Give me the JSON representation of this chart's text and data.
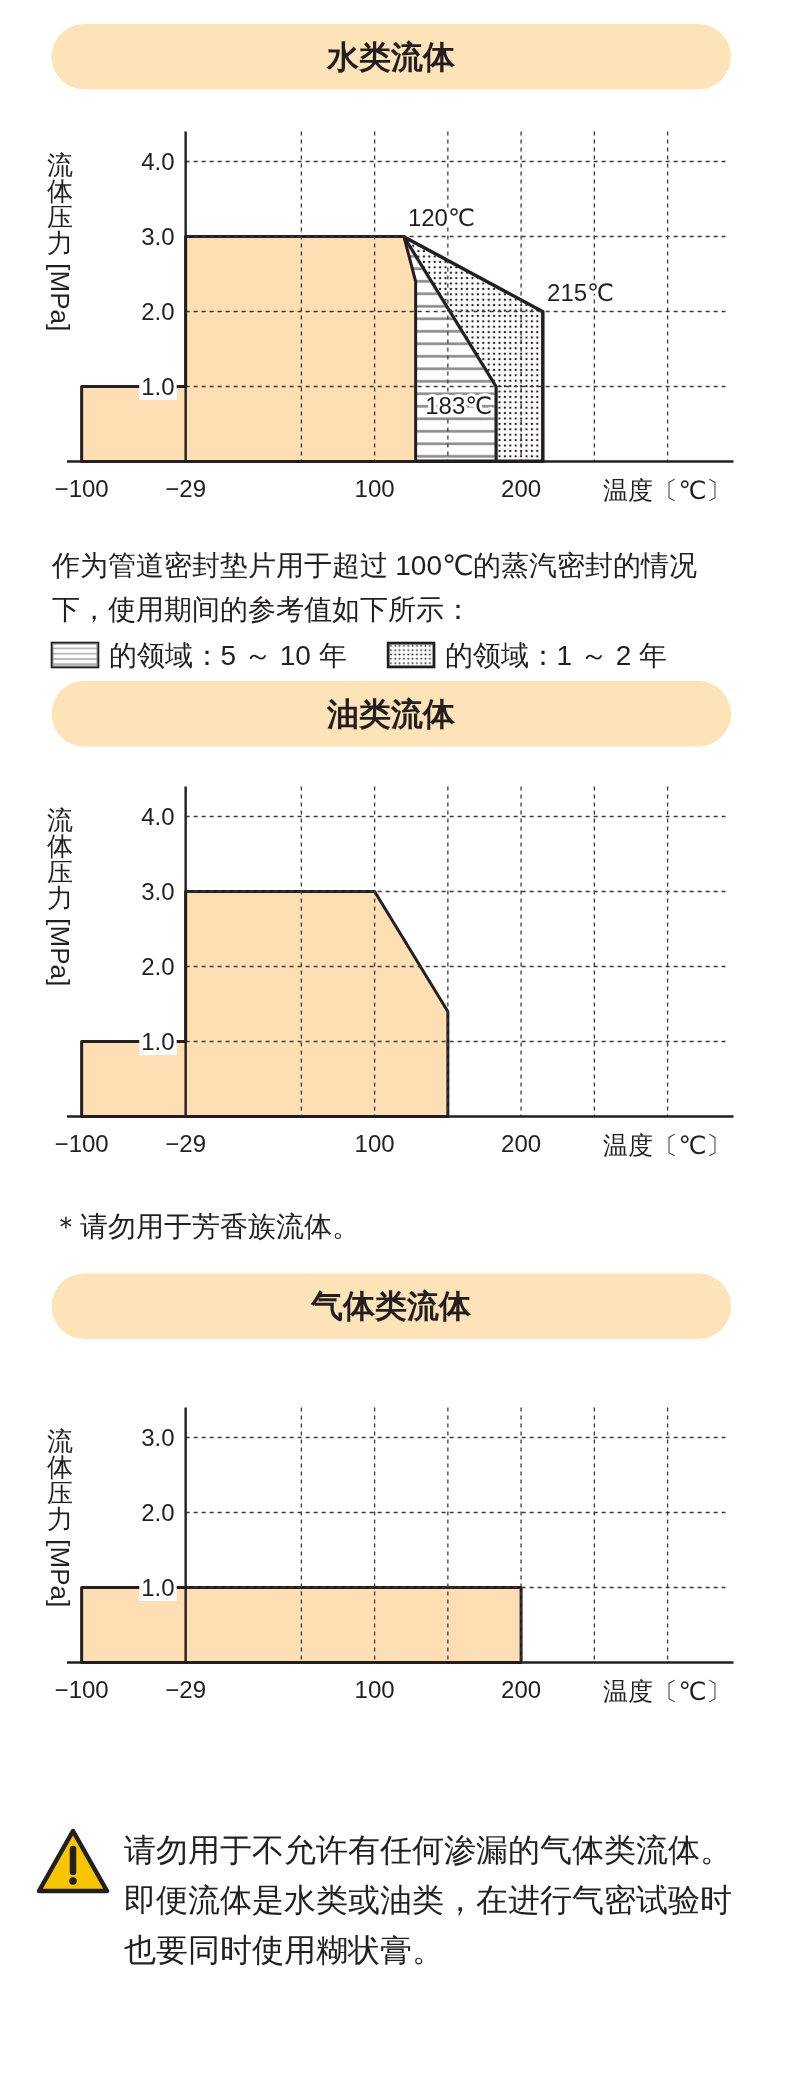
{
  "chart_data": [
    {
      "type": "area",
      "title": "水类流体",
      "xlabel": "温度〔℃〕",
      "ylabel": "流体压力 [MPa]",
      "xlim": [
        -110,
        345
      ],
      "xticks": [
        {
          "value": -100,
          "label": "−100"
        },
        {
          "value": -29,
          "label": "−29"
        },
        {
          "value": 50,
          "label": null
        },
        {
          "value": 100,
          "label": "100"
        },
        {
          "value": 150,
          "label": null
        },
        {
          "value": 200,
          "label": "200"
        },
        {
          "value": 250,
          "label": null
        },
        {
          "value": 300,
          "label": null
        }
      ],
      "ylim": [
        0,
        4.4
      ],
      "yticks": [
        {
          "value": 1,
          "label": "1.0"
        },
        {
          "value": 2,
          "label": "2.0"
        },
        {
          "value": 3,
          "label": "3.0"
        },
        {
          "value": 4,
          "label": "4.0"
        }
      ],
      "grid": true,
      "legend": "bottom",
      "series": [
        {
          "color": "#fddfb3",
          "x": [
            -100,
            -29,
            -29,
            120,
            128
          ],
          "values": [
            1,
            1,
            3,
            3,
            2.4
          ]
        },
        {
          "name": "的领域：5 ～ 10 年",
          "color": "#8a8a8a",
          "x": [
            120,
            183
          ],
          "values": [
            3,
            1
          ]
        },
        {
          "name": "的领域：1 ～ 2 年",
          "color": "#231f20",
          "x": [
            120,
            215
          ],
          "values": [
            3,
            2
          ]
        }
      ],
      "annotations": [
        {
          "text": "120℃",
          "x": 120,
          "y": 3
        },
        {
          "text": "215℃",
          "x": 215,
          "y": 2
        },
        {
          "text": "183℃",
          "x": 183,
          "y": 1
        },
        "作为管道密封垫片用于超过 100℃的蒸汽密封的情况下，使用期间的参考值如下所示："
      ]
    },
    {
      "type": "area",
      "title": "油类流体",
      "xlabel": "温度〔℃〕",
      "ylabel": "流体压力 [MPa]",
      "xlim": [
        -110,
        345
      ],
      "xticks": [
        {
          "value": -100,
          "label": "−100"
        },
        {
          "value": -29,
          "label": "−29"
        },
        {
          "value": 50,
          "label": null
        },
        {
          "value": 100,
          "label": "100"
        },
        {
          "value": 150,
          "label": null
        },
        {
          "value": 200,
          "label": "200"
        },
        {
          "value": 250,
          "label": null
        },
        {
          "value": 300,
          "label": null
        }
      ],
      "ylim": [
        0,
        4.4
      ],
      "yticks": [
        {
          "value": 1,
          "label": "1.0"
        },
        {
          "value": 2,
          "label": "2.0"
        },
        {
          "value": 3,
          "label": "3.0"
        },
        {
          "value": 4,
          "label": "4.0"
        }
      ],
      "grid": true,
      "series": [
        {
          "color": "#fddfb3",
          "x": [
            -100,
            -29,
            -29,
            100,
            150
          ],
          "values": [
            1,
            1,
            3,
            3,
            1.4
          ]
        }
      ],
      "annotations": [
        "＊请勿用于芳香族流体。"
      ]
    },
    {
      "type": "area",
      "title": "气体类流体",
      "xlabel": "温度〔℃〕",
      "ylabel": "流体压力 [MPa]",
      "xlim": [
        -110,
        345
      ],
      "xticks": [
        {
          "value": -100,
          "label": "−100"
        },
        {
          "value": -29,
          "label": "−29"
        },
        {
          "value": 50,
          "label": null
        },
        {
          "value": 100,
          "label": "100"
        },
        {
          "value": 150,
          "label": null
        },
        {
          "value": 200,
          "label": "200"
        },
        {
          "value": 250,
          "label": null
        },
        {
          "value": 300,
          "label": null
        }
      ],
      "ylim": [
        0,
        3.4
      ],
      "yticks": [
        {
          "value": 1,
          "label": "1.0"
        },
        {
          "value": 2,
          "label": "2.0"
        },
        {
          "value": 3,
          "label": "3.0"
        }
      ],
      "grid": true,
      "series": [
        {
          "color": "#fddfb3",
          "x": [
            -100,
            200
          ],
          "values": [
            1,
            1
          ]
        }
      ],
      "annotations": [
        "请勿用于不允许有任何渗漏的气体类流体。",
        "即便流体是水类或油类，在进行气密试验时也要同时使用糊状膏。"
      ]
    }
  ]
}
